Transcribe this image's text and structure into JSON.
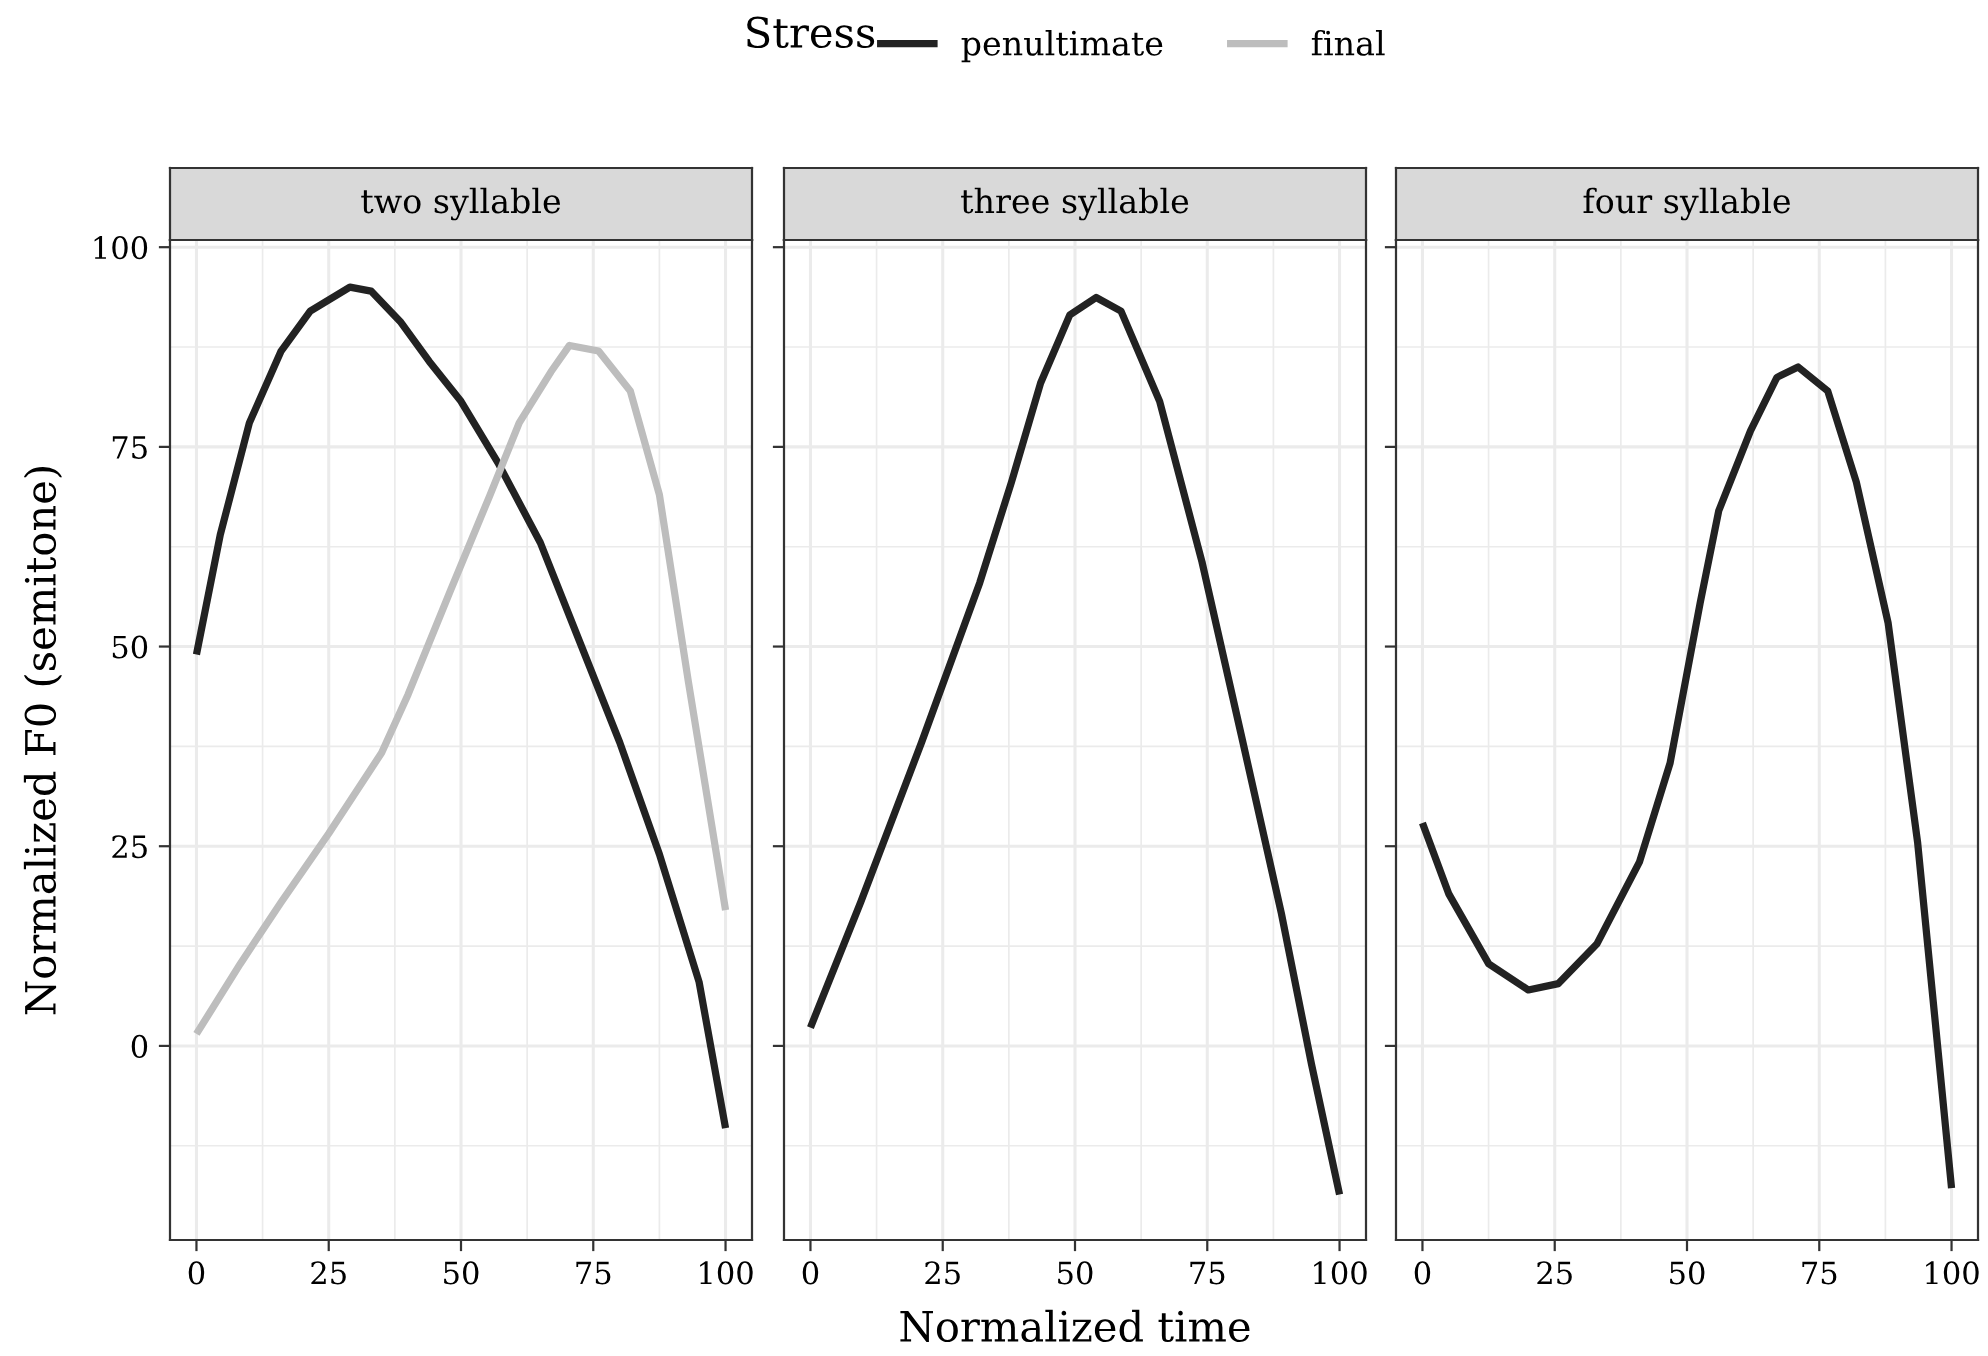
{
  "chart_data": [
    {
      "type": "line",
      "title": "two syllable",
      "ylabel": "Normalized F0 (semitone)",
      "legend_title": "Stress",
      "legend": "top",
      "grid": true,
      "xlim": [
        -5,
        105
      ],
      "ylim": [
        -24.3,
        100.9
      ],
      "xticks": [
        0,
        25,
        50,
        75,
        100
      ],
      "yticks": [
        0,
        25,
        50,
        75,
        100
      ],
      "series": [
        {
          "name": "penultimate",
          "color": "#222222",
          "x": [
            0,
            4.5,
            10,
            16,
            21.5,
            29,
            33,
            38.5,
            44,
            50,
            57,
            65,
            72.5,
            80,
            87.5,
            95,
            100
          ],
          "values": [
            49,
            64,
            78,
            87,
            92,
            95,
            94.5,
            90.7,
            85.7,
            80.7,
            73,
            63,
            50.5,
            38,
            24,
            8,
            -10.3
          ]
        },
        {
          "name": "final",
          "color": "#bdbdbd",
          "x": [
            0,
            8.3,
            16,
            25,
            35,
            40,
            48,
            55.5,
            61,
            67,
            70.5,
            76,
            82,
            87.5,
            93,
            100
          ],
          "values": [
            1.5,
            10.3,
            18,
            26.6,
            36.7,
            44,
            57,
            69,
            78,
            84.4,
            87.7,
            87,
            82,
            69,
            45.5,
            17
          ]
        }
      ]
    },
    {
      "type": "line",
      "title": "three syllable",
      "xlabel": "Normalized time",
      "grid": true,
      "tick_labels": "x",
      "xlim": [
        -5,
        105
      ],
      "ylim": [
        -24.3,
        100.9
      ],
      "xticks": [
        0,
        25,
        50,
        75,
        100
      ],
      "yticks": [
        0,
        25,
        50,
        75,
        100
      ],
      "series": [
        {
          "color": "#222222",
          "x": [
            0,
            9.5,
            21,
            32,
            38,
            43.5,
            49,
            54,
            58.7,
            66,
            74,
            81.4,
            89,
            94.7,
            100
          ],
          "values": [
            2.3,
            18,
            38,
            58,
            70.6,
            83,
            91.5,
            93.7,
            92,
            80.7,
            60.6,
            39,
            16.6,
            -2.3,
            -18.6
          ]
        }
      ]
    },
    {
      "type": "line",
      "title": "four syllable",
      "grid": true,
      "tick_labels": "x",
      "xlim": [
        -5,
        105
      ],
      "ylim": [
        -24.3,
        100.9
      ],
      "xticks": [
        0,
        25,
        50,
        75,
        100
      ],
      "yticks": [
        0,
        25,
        50,
        75,
        100
      ],
      "series": [
        {
          "color": "#222222",
          "x": [
            0,
            5,
            12.5,
            20,
            25.7,
            33,
            41,
            46.8,
            52.5,
            56,
            62,
            67,
            71,
            76.6,
            82,
            88,
            93.6,
            100
          ],
          "values": [
            27.9,
            19,
            10.3,
            7,
            7.8,
            12.8,
            23,
            35.4,
            55.5,
            67,
            77,
            83.7,
            85,
            82,
            70.6,
            53,
            25.4,
            -17.8
          ]
        }
      ]
    }
  ]
}
